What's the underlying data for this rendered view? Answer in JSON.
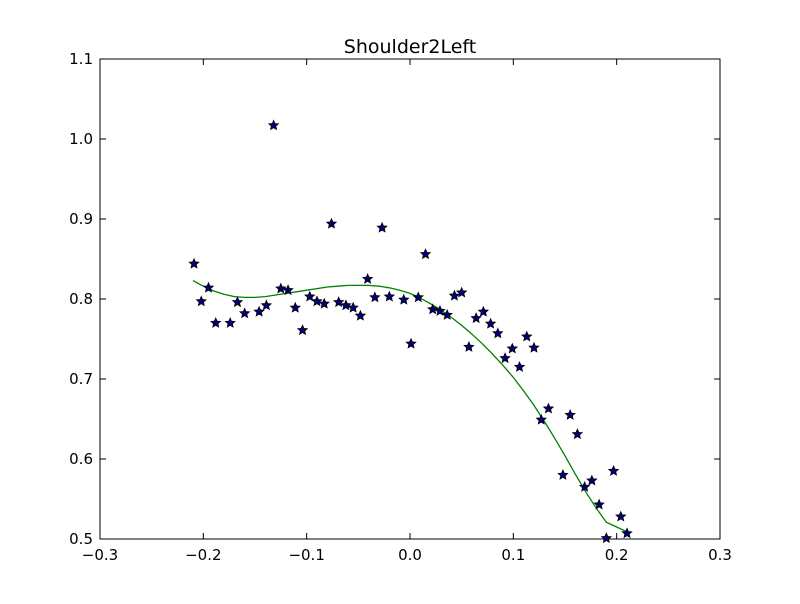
{
  "chart_data": {
    "type": "scatter",
    "title": "Shoulder2Left",
    "xlabel": "",
    "ylabel": "",
    "xlim": [
      -0.3,
      0.3
    ],
    "ylim": [
      0.5,
      1.1
    ],
    "xticks": [
      "−0.3",
      "−0.2",
      "−0.1",
      "0.0",
      "0.1",
      "0.2",
      "0.3"
    ],
    "yticks": [
      "0.5",
      "0.6",
      "0.7",
      "0.8",
      "0.9",
      "1.0",
      "1.1"
    ],
    "grid": false,
    "legend": "none",
    "series": [
      {
        "kind": "scatter",
        "marker": "star",
        "color": "#00007f",
        "points": [
          [
            -0.209,
            0.844
          ],
          [
            -0.202,
            0.797
          ],
          [
            -0.195,
            0.814
          ],
          [
            -0.188,
            0.77
          ],
          [
            -0.174,
            0.77
          ],
          [
            -0.167,
            0.796
          ],
          [
            -0.16,
            0.782
          ],
          [
            -0.146,
            0.784
          ],
          [
            -0.139,
            0.792
          ],
          [
            -0.132,
            1.017
          ],
          [
            -0.125,
            0.813
          ],
          [
            -0.118,
            0.811
          ],
          [
            -0.111,
            0.789
          ],
          [
            -0.104,
            0.761
          ],
          [
            -0.097,
            0.803
          ],
          [
            -0.09,
            0.797
          ],
          [
            -0.083,
            0.794
          ],
          [
            -0.076,
            0.894
          ],
          [
            -0.069,
            0.796
          ],
          [
            -0.062,
            0.792
          ],
          [
            -0.055,
            0.789
          ],
          [
            -0.048,
            0.779
          ],
          [
            -0.041,
            0.825
          ],
          [
            -0.034,
            0.802
          ],
          [
            -0.027,
            0.889
          ],
          [
            -0.02,
            0.803
          ],
          [
            -0.006,
            0.799
          ],
          [
            0.001,
            0.744
          ],
          [
            0.008,
            0.802
          ],
          [
            0.015,
            0.856
          ],
          [
            0.022,
            0.787
          ],
          [
            0.029,
            0.785
          ],
          [
            0.036,
            0.78
          ],
          [
            0.043,
            0.804
          ],
          [
            0.05,
            0.808
          ],
          [
            0.057,
            0.74
          ],
          [
            0.064,
            0.776
          ],
          [
            0.071,
            0.784
          ],
          [
            0.078,
            0.769
          ],
          [
            0.085,
            0.757
          ],
          [
            0.092,
            0.726
          ],
          [
            0.099,
            0.738
          ],
          [
            0.106,
            0.715
          ],
          [
            0.113,
            0.753
          ],
          [
            0.12,
            0.739
          ],
          [
            0.127,
            0.649
          ],
          [
            0.134,
            0.663
          ],
          [
            0.148,
            0.58
          ],
          [
            0.155,
            0.655
          ],
          [
            0.162,
            0.631
          ],
          [
            0.169,
            0.565
          ],
          [
            0.176,
            0.573
          ],
          [
            0.183,
            0.543
          ],
          [
            0.19,
            0.501
          ],
          [
            0.197,
            0.585
          ],
          [
            0.204,
            0.528
          ],
          [
            0.21,
            0.507
          ]
        ]
      },
      {
        "kind": "line",
        "color": "#008000",
        "points": [
          [
            -0.21,
            0.823
          ],
          [
            -0.2,
            0.816
          ],
          [
            -0.19,
            0.81
          ],
          [
            -0.18,
            0.806
          ],
          [
            -0.17,
            0.803
          ],
          [
            -0.16,
            0.802
          ],
          [
            -0.15,
            0.802
          ],
          [
            -0.14,
            0.803
          ],
          [
            -0.13,
            0.805
          ],
          [
            -0.12,
            0.807
          ],
          [
            -0.11,
            0.809
          ],
          [
            -0.1,
            0.811
          ],
          [
            -0.09,
            0.813
          ],
          [
            -0.08,
            0.815
          ],
          [
            -0.07,
            0.816
          ],
          [
            -0.06,
            0.817
          ],
          [
            -0.05,
            0.817
          ],
          [
            -0.04,
            0.817
          ],
          [
            -0.03,
            0.816
          ],
          [
            -0.02,
            0.814
          ],
          [
            -0.01,
            0.811
          ],
          [
            0.0,
            0.807
          ],
          [
            0.01,
            0.801
          ],
          [
            0.02,
            0.794
          ],
          [
            0.03,
            0.786
          ],
          [
            0.04,
            0.777
          ],
          [
            0.05,
            0.767
          ],
          [
            0.06,
            0.756
          ],
          [
            0.07,
            0.744
          ],
          [
            0.08,
            0.731
          ],
          [
            0.09,
            0.717
          ],
          [
            0.1,
            0.702
          ],
          [
            0.11,
            0.685
          ],
          [
            0.12,
            0.667
          ],
          [
            0.13,
            0.647
          ],
          [
            0.14,
            0.626
          ],
          [
            0.15,
            0.604
          ],
          [
            0.16,
            0.581
          ],
          [
            0.17,
            0.559
          ],
          [
            0.18,
            0.539
          ],
          [
            0.19,
            0.521
          ],
          [
            0.2,
            0.515
          ],
          [
            0.21,
            0.509
          ]
        ]
      }
    ]
  }
}
